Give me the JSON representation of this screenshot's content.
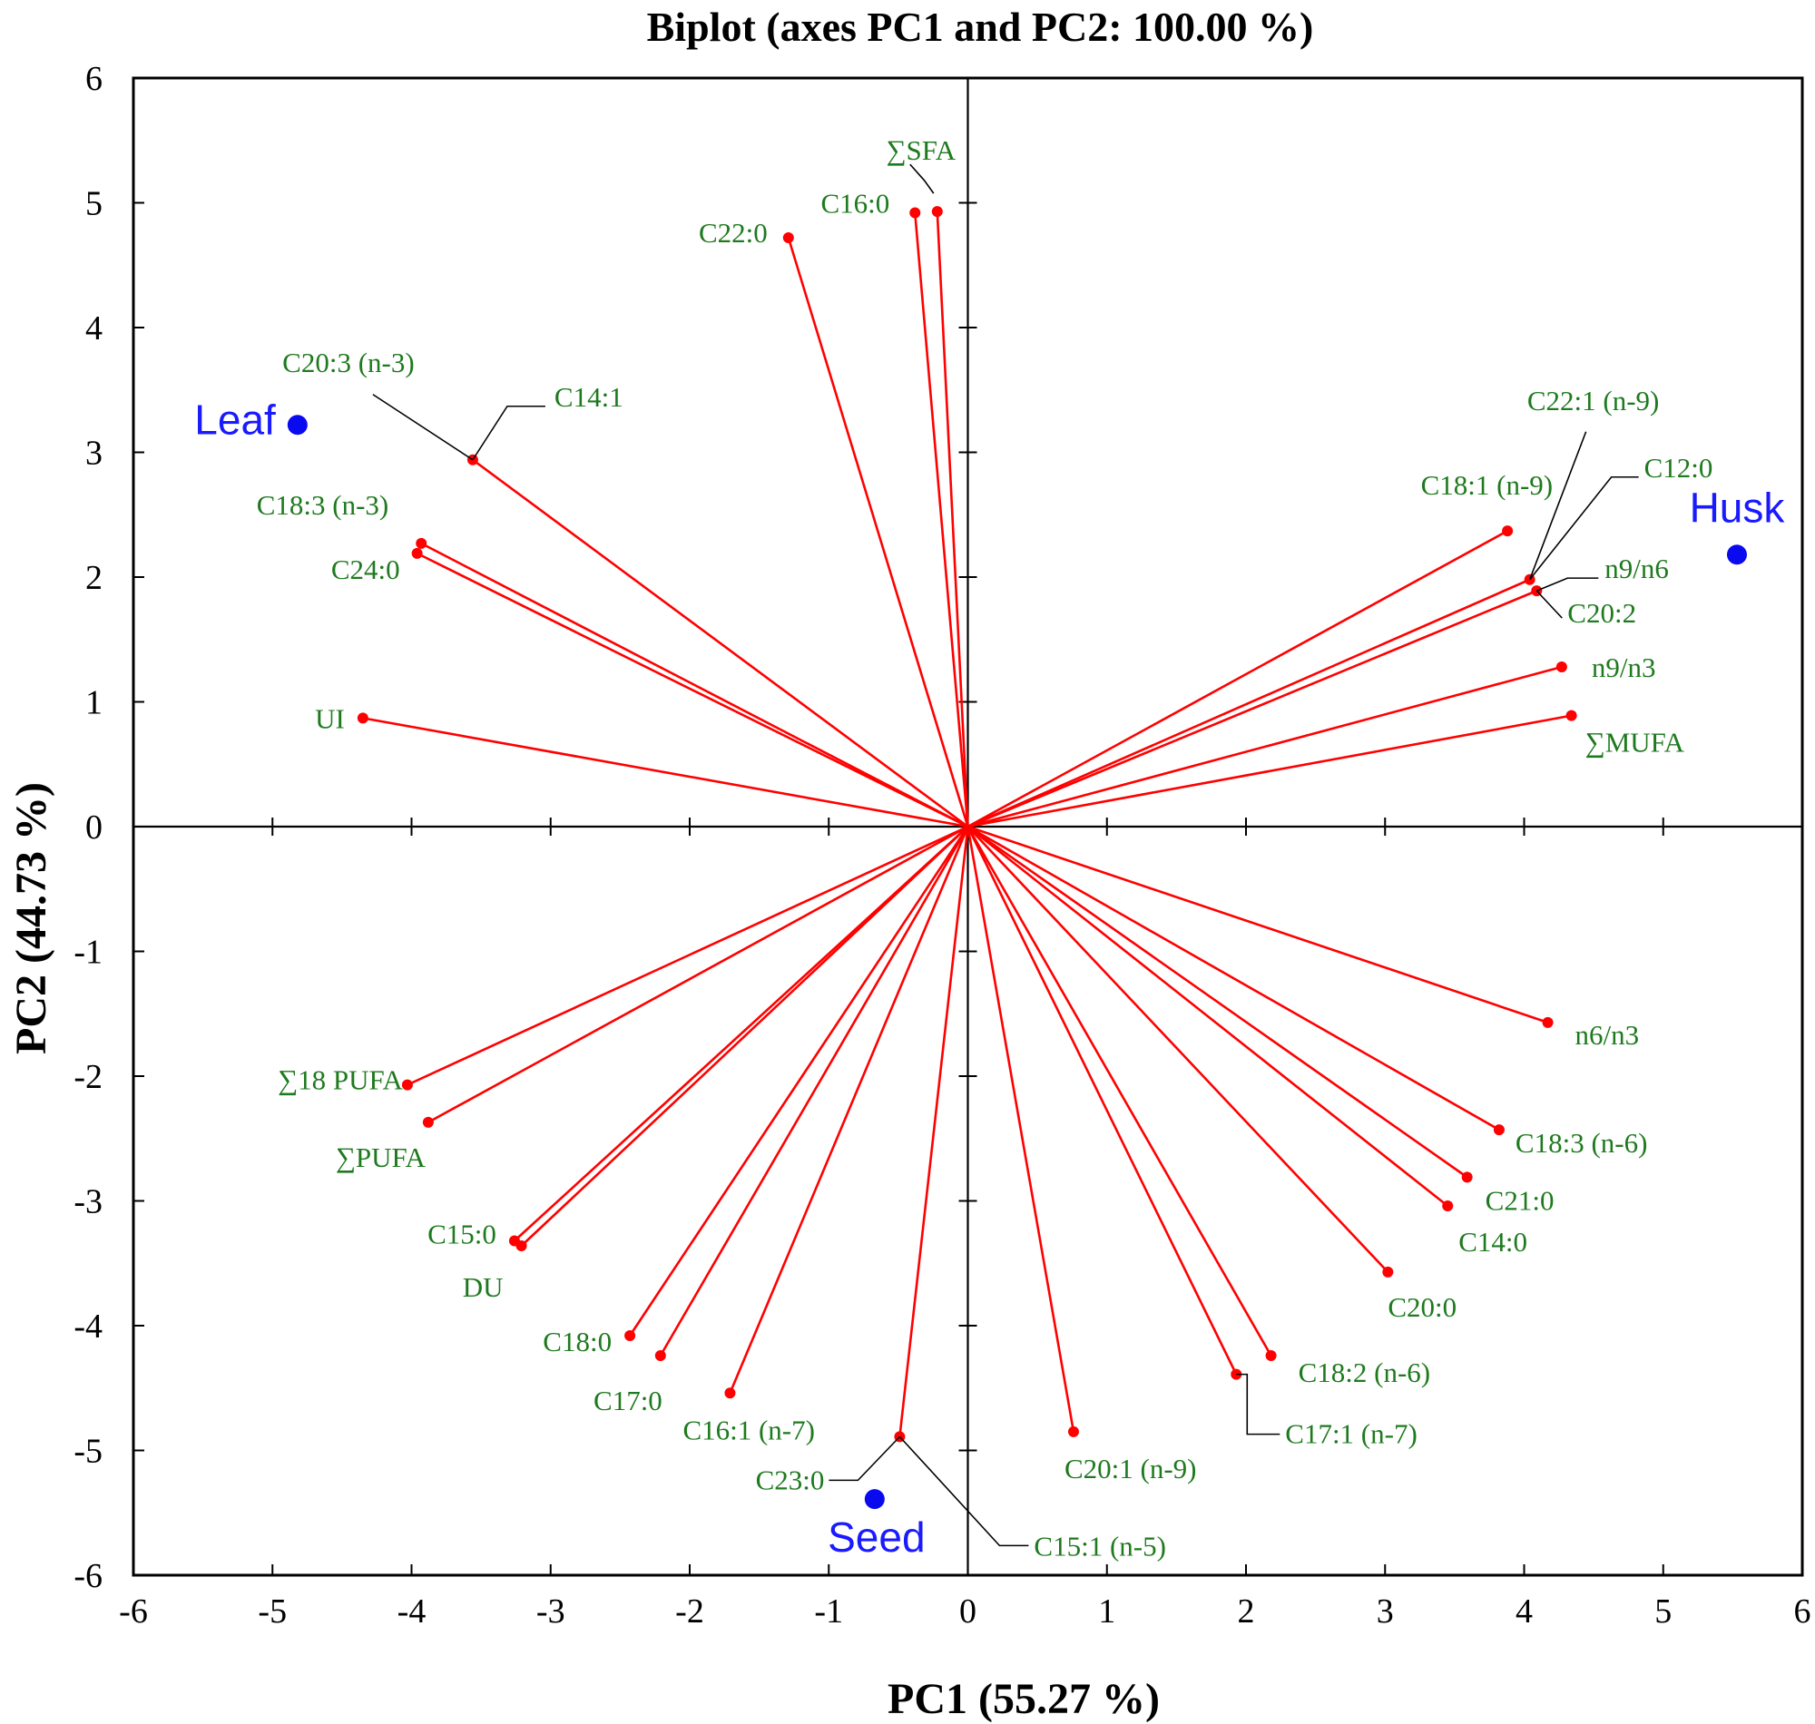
{
  "chart_data": {
    "type": "scatter",
    "subtype": "biplot",
    "title": "Biplot (axes PC1 and PC2: 100.00 %)",
    "xlabel": "PC1 (55.27 %)",
    "ylabel": "PC2 (44.73 %)",
    "xlim": [
      -6,
      6
    ],
    "ylim": [
      -6,
      6
    ],
    "xticks": [
      "-6",
      "-5",
      "-4",
      "-3",
      "-2",
      "-1",
      "0",
      "1",
      "2",
      "3",
      "4",
      "5",
      "6"
    ],
    "yticks": [
      "6",
      "5",
      "4",
      "3",
      "2",
      "1",
      "0",
      "-1",
      "-2",
      "-3",
      "-4",
      "-5",
      "-6"
    ],
    "variables": [
      {
        "label": "∑SFA",
        "x": -0.22,
        "y": 4.93
      },
      {
        "label": "C16:0",
        "x": -0.38,
        "y": 4.92
      },
      {
        "label": "C22:0",
        "x": -1.29,
        "y": 4.72
      },
      {
        "label": "C20:3 (n-3)",
        "x": -3.56,
        "y": 2.94
      },
      {
        "label": "C14:1",
        "x": -3.56,
        "y": 2.94
      },
      {
        "label": "C18:3 (n-3)",
        "x": -3.93,
        "y": 2.27
      },
      {
        "label": "C24:0",
        "x": -3.96,
        "y": 2.19
      },
      {
        "label": "UI",
        "x": -4.35,
        "y": 0.87
      },
      {
        "label": "C22:1 (n-9)",
        "x": 4.04,
        "y": 1.98
      },
      {
        "label": "C12:0",
        "x": 4.04,
        "y": 1.98
      },
      {
        "label": "C18:1 (n-9)",
        "x": 3.88,
        "y": 2.37
      },
      {
        "label": "n9/n6",
        "x": 4.09,
        "y": 1.89
      },
      {
        "label": "C20:2",
        "x": 4.09,
        "y": 1.89
      },
      {
        "label": "n9/n3",
        "x": 4.27,
        "y": 1.28
      },
      {
        "label": "∑MUFA",
        "x": 4.34,
        "y": 0.89
      },
      {
        "label": "n6/n3",
        "x": 4.17,
        "y": -1.57
      },
      {
        "label": "C18:3 (n-6)",
        "x": 3.82,
        "y": -2.43
      },
      {
        "label": "C21:0",
        "x": 3.59,
        "y": -2.81
      },
      {
        "label": "C14:0",
        "x": 3.45,
        "y": -3.04
      },
      {
        "label": "C20:0",
        "x": 3.02,
        "y": -3.57
      },
      {
        "label": "C18:2 (n-6)",
        "x": 2.18,
        "y": -4.24
      },
      {
        "label": "C17:1 (n-7)",
        "x": 1.93,
        "y": -4.39
      },
      {
        "label": "C20:1 (n-9)",
        "x": 0.76,
        "y": -4.85
      },
      {
        "label": "C15:1 (n-5)",
        "x": -0.49,
        "y": -4.89
      },
      {
        "label": "C23:0",
        "x": -0.49,
        "y": -4.89
      },
      {
        "label": "C16:1 (n-7)",
        "x": -1.71,
        "y": -4.54
      },
      {
        "label": "C17:0",
        "x": -2.21,
        "y": -4.24
      },
      {
        "label": "C18:0",
        "x": -2.43,
        "y": -4.08
      },
      {
        "label": "C15:0",
        "x": -3.26,
        "y": -3.32
      },
      {
        "label": "DU",
        "x": -3.21,
        "y": -3.36
      },
      {
        "label": "∑PUFA",
        "x": -3.88,
        "y": -2.37
      },
      {
        "label": "∑18 PUFA",
        "x": -4.03,
        "y": -2.07
      }
    ],
    "observations": [
      {
        "label": "Leaf",
        "x": -4.82,
        "y": 3.22
      },
      {
        "label": "Husk",
        "x": 5.53,
        "y": 2.18
      },
      {
        "label": "Seed",
        "x": -0.67,
        "y": -5.39
      }
    ],
    "colors": {
      "vector": "#ff0000",
      "variable_label": "#1e7a1e",
      "observation": "#1a1aff"
    }
  }
}
